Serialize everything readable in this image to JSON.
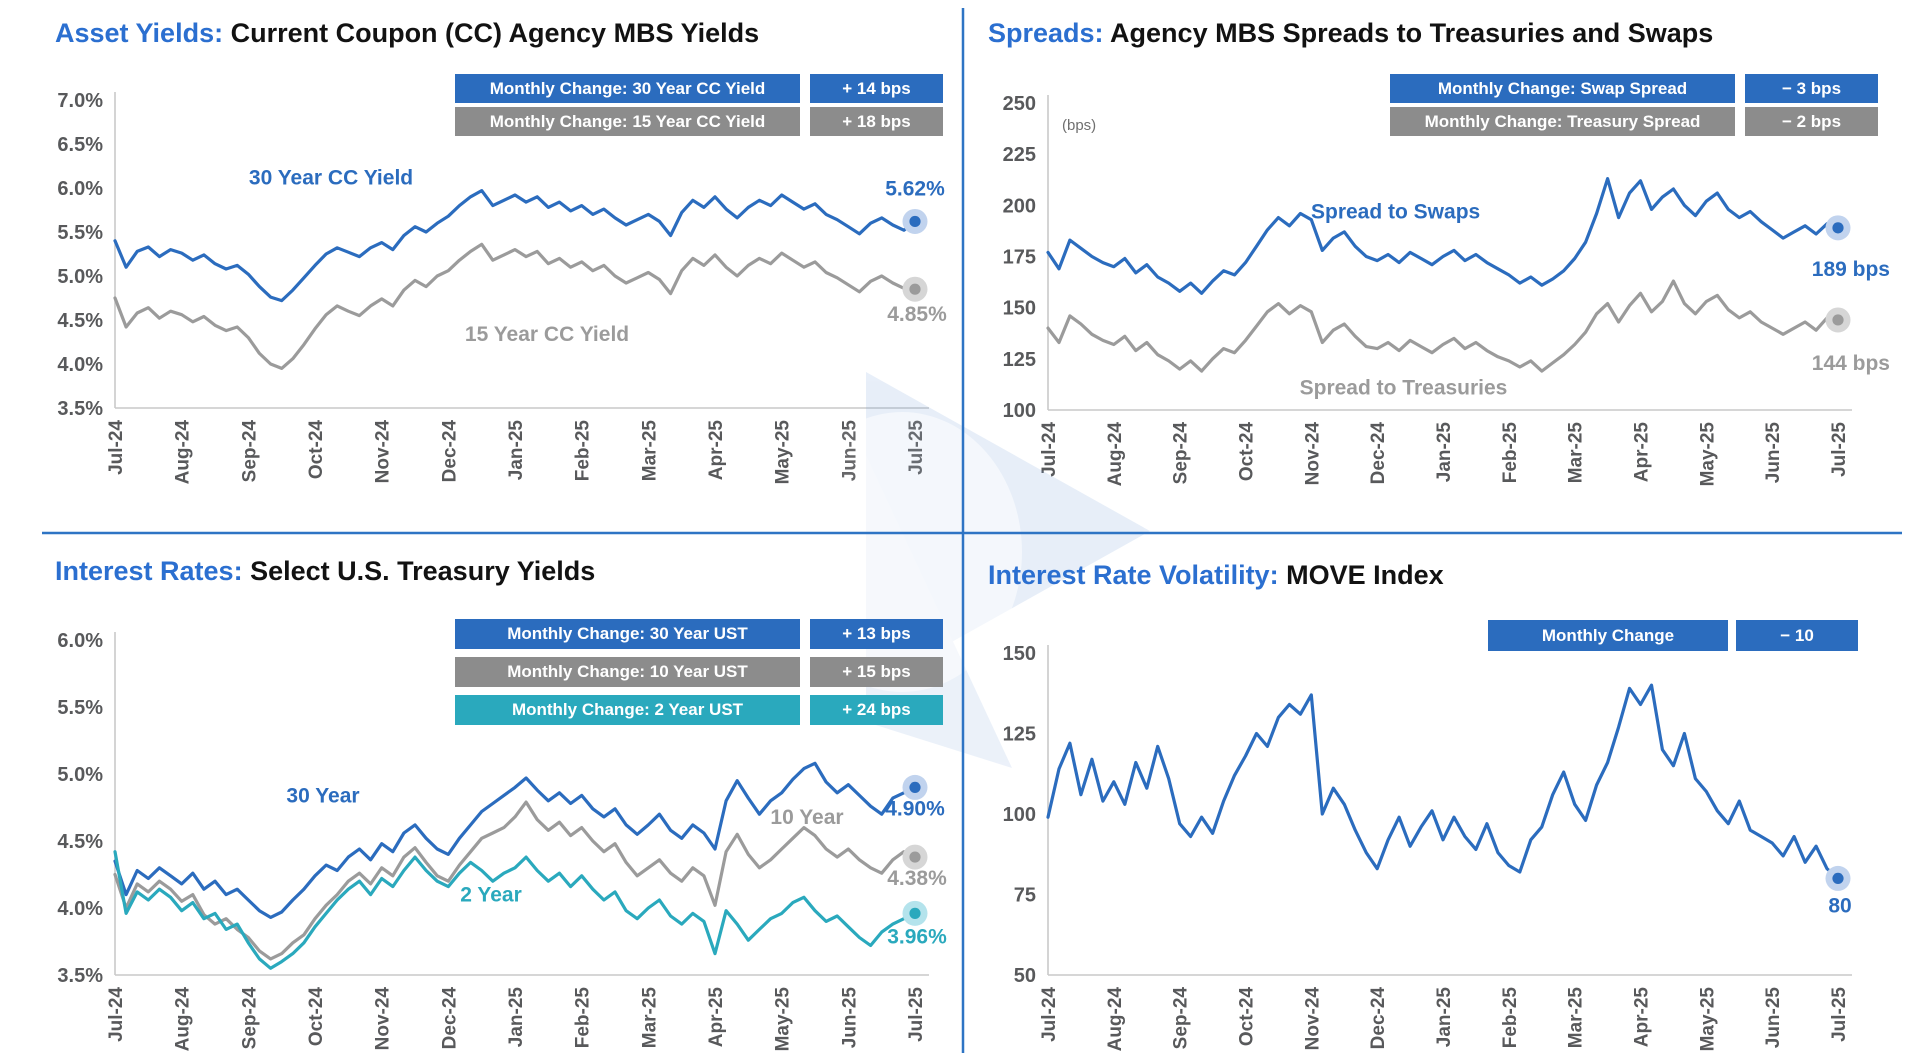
{
  "page": {
    "background": "#ffffff",
    "divider_color": "#2e74c4",
    "accent_blue": "#2b6cbe",
    "accent_gray": "#8c8c8c",
    "accent_teal": "#2aa9bd",
    "axis_color": "#c9c9c9",
    "tick_label_color": "#58595b"
  },
  "panels": [
    {
      "id": "cc_yields",
      "title_prefix": "Asset Yields:",
      "title_rest": " Current Coupon (CC) Agency MBS Yields",
      "legend": [
        {
          "label": "Monthly Change: 30 Year CC Yield",
          "value": "+ 14 bps",
          "color": "#2b6cbe"
        },
        {
          "label": "Monthly Change: 15 Year CC Yield",
          "value": "+ 18 bps",
          "color": "#8c8c8c"
        }
      ]
    },
    {
      "id": "spreads",
      "title_prefix": "Spreads:",
      "title_rest": " Agency MBS Spreads to Treasuries and Swaps",
      "legend": [
        {
          "label": "Monthly Change: Swap Spread",
          "value": "− 3 bps",
          "color": "#2b6cbe"
        },
        {
          "label": "Monthly Change: Treasury Spread",
          "value": "− 2 bps",
          "color": "#8c8c8c"
        }
      ]
    },
    {
      "id": "ust_yields",
      "title_prefix": "Interest Rates:",
      "title_rest": " Select U.S. Treasury Yields",
      "legend": [
        {
          "label": "Monthly Change: 30 Year UST",
          "value": "+ 13 bps",
          "color": "#2b6cbe"
        },
        {
          "label": "Monthly Change: 10 Year UST",
          "value": "+ 15 bps",
          "color": "#8c8c8c"
        },
        {
          "label": "Monthly Change: 2 Year UST",
          "value": "+ 24 bps",
          "color": "#2aa9bd"
        }
      ]
    },
    {
      "id": "move",
      "title_prefix": "Interest Rate Volatility:",
      "title_rest": " MOVE Index",
      "legend": [
        {
          "label": "Monthly Change",
          "value": "− 10",
          "color": "#2b6cbe"
        }
      ]
    }
  ],
  "chart_data": [
    {
      "id": "cc_yields",
      "type": "line",
      "title": "Asset Yields: Current Coupon (CC) Agency MBS Yields",
      "x_labels": [
        "Jul-24",
        "Aug-24",
        "Sep-24",
        "Oct-24",
        "Nov-24",
        "Dec-24",
        "Jan-25",
        "Feb-25",
        "Mar-25",
        "Apr-25",
        "May-25",
        "Jun-25",
        "Jul-25"
      ],
      "ylim": [
        3.5,
        7.0
      ],
      "grid": false,
      "yticks": [
        {
          "v": 7.0,
          "label": "7.0%"
        },
        {
          "v": 6.5,
          "label": "6.5%"
        },
        {
          "v": 6.0,
          "label": "6.0%"
        },
        {
          "v": 5.5,
          "label": "5.5%"
        },
        {
          "v": 5.0,
          "label": "5.0%"
        },
        {
          "v": 4.5,
          "label": "4.5%"
        },
        {
          "v": 4.0,
          "label": "4.0%"
        },
        {
          "v": 3.5,
          "label": "3.5%"
        }
      ],
      "series": [
        {
          "name": "30 Year CC Yield",
          "color": "#2b6cbe",
          "halo": "#c1d3ee",
          "inline_label": {
            "text": "30 Year CC Yield",
            "x_frac": 0.27,
            "value": 6.12
          },
          "end_label": {
            "text": "5.62%",
            "dx": 0,
            "dy": -26,
            "anchor": "middle"
          },
          "values": [
            5.4,
            5.1,
            5.28,
            5.33,
            5.22,
            5.3,
            5.26,
            5.18,
            5.24,
            5.14,
            5.08,
            5.12,
            5.02,
            4.88,
            4.76,
            4.72,
            4.84,
            4.98,
            5.12,
            5.25,
            5.32,
            5.27,
            5.22,
            5.32,
            5.38,
            5.3,
            5.46,
            5.56,
            5.5,
            5.6,
            5.68,
            5.8,
            5.9,
            5.97,
            5.8,
            5.86,
            5.92,
            5.84,
            5.9,
            5.78,
            5.84,
            5.74,
            5.8,
            5.7,
            5.76,
            5.66,
            5.58,
            5.64,
            5.7,
            5.62,
            5.46,
            5.72,
            5.86,
            5.78,
            5.9,
            5.76,
            5.66,
            5.78,
            5.86,
            5.8,
            5.92,
            5.84,
            5.76,
            5.82,
            5.7,
            5.64,
            5.56,
            5.48,
            5.6,
            5.66,
            5.58,
            5.52,
            5.62
          ]
        },
        {
          "name": "15 Year CC Yield",
          "color": "#9b9b9b",
          "halo": "#d6d6d6",
          "inline_label": {
            "text": "15 Year CC Yield",
            "x_frac": 0.54,
            "value": 4.34
          },
          "end_label": {
            "text": "4.85%",
            "dx": 2,
            "dy": 32,
            "anchor": "middle"
          },
          "values": [
            4.75,
            4.42,
            4.58,
            4.64,
            4.52,
            4.6,
            4.56,
            4.48,
            4.54,
            4.44,
            4.38,
            4.42,
            4.3,
            4.12,
            4.0,
            3.95,
            4.06,
            4.22,
            4.4,
            4.56,
            4.66,
            4.6,
            4.55,
            4.66,
            4.74,
            4.66,
            4.84,
            4.95,
            4.88,
            5.0,
            5.06,
            5.18,
            5.28,
            5.36,
            5.18,
            5.24,
            5.3,
            5.22,
            5.28,
            5.14,
            5.2,
            5.1,
            5.16,
            5.06,
            5.12,
            5.0,
            4.92,
            4.98,
            5.04,
            4.96,
            4.8,
            5.06,
            5.2,
            5.12,
            5.24,
            5.1,
            5.0,
            5.12,
            5.2,
            5.14,
            5.26,
            5.18,
            5.1,
            5.16,
            5.04,
            4.98,
            4.9,
            4.82,
            4.94,
            5.0,
            4.92,
            4.86,
            4.85
          ]
        }
      ]
    },
    {
      "id": "spreads",
      "type": "line",
      "title": "Spreads: Agency MBS Spreads to Treasuries and Swaps",
      "unit_note": "(bps)",
      "x_labels": [
        "Jul-24",
        "Aug-24",
        "Sep-24",
        "Oct-24",
        "Nov-24",
        "Dec-24",
        "Jan-25",
        "Feb-25",
        "Mar-25",
        "Apr-25",
        "May-25",
        "Jun-25",
        "Jul-25"
      ],
      "ylim": [
        100,
        250
      ],
      "grid": false,
      "yticks": [
        {
          "v": 250,
          "label": "250"
        },
        {
          "v": 225,
          "label": "225"
        },
        {
          "v": 200,
          "label": "200"
        },
        {
          "v": 175,
          "label": "175"
        },
        {
          "v": 150,
          "label": "150"
        },
        {
          "v": 125,
          "label": "125"
        },
        {
          "v": 100,
          "label": "100"
        }
      ],
      "series": [
        {
          "name": "Spread to Swaps",
          "color": "#2b6cbe",
          "halo": "#c1d3ee",
          "inline_label": {
            "text": "Spread to Swaps",
            "x_frac": 0.44,
            "value": 197
          },
          "end_label": {
            "text": "189 bps",
            "dx": 52,
            "dy": 48,
            "anchor": "end"
          },
          "values": [
            177,
            169,
            183,
            179,
            175,
            172,
            170,
            174,
            167,
            171,
            165,
            162,
            158,
            162,
            157,
            163,
            168,
            166,
            172,
            180,
            188,
            194,
            190,
            196,
            193,
            178,
            184,
            187,
            180,
            175,
            173,
            176,
            172,
            177,
            174,
            171,
            175,
            178,
            173,
            176,
            172,
            169,
            166,
            162,
            165,
            161,
            164,
            168,
            174,
            182,
            196,
            213,
            194,
            206,
            212,
            198,
            204,
            208,
            200,
            195,
            202,
            206,
            198,
            194,
            197,
            192,
            188,
            184,
            187,
            190,
            186,
            191,
            189
          ]
        },
        {
          "name": "Spread to Treasuries",
          "color": "#9b9b9b",
          "halo": "#d6d6d6",
          "inline_label": {
            "text": "Spread to Treasuries",
            "x_frac": 0.45,
            "value": 111
          },
          "end_label": {
            "text": "144 bps",
            "dx": 52,
            "dy": 50,
            "anchor": "end"
          },
          "values": [
            140,
            133,
            146,
            142,
            137,
            134,
            132,
            136,
            129,
            133,
            127,
            124,
            120,
            124,
            119,
            125,
            130,
            128,
            134,
            141,
            148,
            152,
            147,
            151,
            148,
            133,
            139,
            142,
            136,
            131,
            130,
            133,
            129,
            134,
            131,
            128,
            132,
            135,
            130,
            133,
            129,
            126,
            124,
            121,
            124,
            119,
            123,
            127,
            132,
            138,
            147,
            152,
            143,
            151,
            157,
            148,
            153,
            163,
            152,
            147,
            153,
            156,
            149,
            145,
            148,
            143,
            140,
            137,
            140,
            143,
            139,
            145,
            144
          ]
        }
      ]
    },
    {
      "id": "ust_yields",
      "type": "line",
      "title": "Interest Rates: Select U.S. Treasury Yields",
      "x_labels": [
        "Jul-24",
        "Aug-24",
        "Sep-24",
        "Oct-24",
        "Nov-24",
        "Dec-24",
        "Jan-25",
        "Feb-25",
        "Mar-25",
        "Apr-25",
        "May-25",
        "Jun-25",
        "Jul-25"
      ],
      "ylim": [
        3.5,
        6.0
      ],
      "grid": false,
      "yticks": [
        {
          "v": 6.0,
          "label": "6.0%"
        },
        {
          "v": 5.5,
          "label": "5.5%"
        },
        {
          "v": 5.0,
          "label": "5.0%"
        },
        {
          "v": 4.5,
          "label": "4.5%"
        },
        {
          "v": 4.0,
          "label": "4.0%"
        },
        {
          "v": 3.5,
          "label": "3.5%"
        }
      ],
      "series": [
        {
          "name": "30 Year",
          "color": "#2b6cbe",
          "halo": "#c1d3ee",
          "inline_label": {
            "text": "30 Year",
            "x_frac": 0.26,
            "value": 4.84
          },
          "end_label": {
            "text": "4.90%",
            "dx": 0,
            "dy": 28,
            "anchor": "middle"
          },
          "values": [
            4.35,
            4.1,
            4.28,
            4.22,
            4.3,
            4.24,
            4.18,
            4.26,
            4.14,
            4.2,
            4.1,
            4.14,
            4.06,
            3.98,
            3.93,
            3.97,
            4.06,
            4.14,
            4.24,
            4.32,
            4.28,
            4.38,
            4.44,
            4.36,
            4.48,
            4.42,
            4.56,
            4.62,
            4.52,
            4.44,
            4.4,
            4.52,
            4.62,
            4.72,
            4.78,
            4.84,
            4.9,
            4.97,
            4.88,
            4.8,
            4.86,
            4.78,
            4.84,
            4.74,
            4.68,
            4.74,
            4.62,
            4.55,
            4.62,
            4.7,
            4.58,
            4.52,
            4.62,
            4.56,
            4.44,
            4.8,
            4.95,
            4.82,
            4.7,
            4.8,
            4.86,
            4.96,
            5.04,
            5.08,
            4.94,
            4.86,
            4.92,
            4.84,
            4.76,
            4.7,
            4.82,
            4.86,
            4.9
          ]
        },
        {
          "name": "10 Year",
          "color": "#9b9b9b",
          "halo": "#d6d6d6",
          "inline_label": {
            "text": "10 Year",
            "x_frac": 0.865,
            "value": 4.68
          },
          "end_label": {
            "text": "4.38%",
            "dx": 2,
            "dy": 28,
            "anchor": "middle"
          },
          "values": [
            4.25,
            4.0,
            4.18,
            4.12,
            4.2,
            4.14,
            4.05,
            4.1,
            3.95,
            3.88,
            3.92,
            3.84,
            3.78,
            3.68,
            3.62,
            3.66,
            3.74,
            3.8,
            3.92,
            4.02,
            4.1,
            4.2,
            4.26,
            4.18,
            4.3,
            4.24,
            4.38,
            4.45,
            4.34,
            4.24,
            4.2,
            4.32,
            4.42,
            4.52,
            4.56,
            4.6,
            4.68,
            4.79,
            4.66,
            4.58,
            4.64,
            4.54,
            4.6,
            4.5,
            4.42,
            4.48,
            4.34,
            4.24,
            4.3,
            4.36,
            4.26,
            4.2,
            4.3,
            4.24,
            4.02,
            4.42,
            4.55,
            4.4,
            4.3,
            4.36,
            4.44,
            4.52,
            4.6,
            4.54,
            4.44,
            4.38,
            4.44,
            4.36,
            4.3,
            4.26,
            4.36,
            4.42,
            4.38
          ]
        },
        {
          "name": "2 Year",
          "color": "#2aa9bd",
          "halo": "#b4e3ec",
          "inline_label": {
            "text": "2 Year",
            "x_frac": 0.47,
            "value": 4.1
          },
          "end_label": {
            "text": "3.96%",
            "dx": 2,
            "dy": 30,
            "anchor": "middle"
          },
          "values": [
            4.42,
            3.96,
            4.12,
            4.06,
            4.14,
            4.08,
            3.98,
            4.04,
            3.92,
            3.96,
            3.84,
            3.88,
            3.74,
            3.62,
            3.55,
            3.6,
            3.66,
            3.74,
            3.86,
            3.96,
            4.06,
            4.14,
            4.2,
            4.1,
            4.22,
            4.16,
            4.28,
            4.38,
            4.28,
            4.2,
            4.16,
            4.26,
            4.34,
            4.28,
            4.2,
            4.26,
            4.3,
            4.38,
            4.28,
            4.2,
            4.26,
            4.16,
            4.24,
            4.14,
            4.06,
            4.12,
            3.98,
            3.92,
            4.0,
            4.06,
            3.94,
            3.88,
            3.96,
            3.9,
            3.66,
            3.98,
            3.88,
            3.76,
            3.84,
            3.92,
            3.96,
            4.04,
            4.08,
            3.98,
            3.9,
            3.94,
            3.86,
            3.78,
            3.72,
            3.82,
            3.88,
            3.92,
            3.96
          ]
        }
      ]
    },
    {
      "id": "move",
      "type": "line",
      "title": "Interest Rate Volatility: MOVE Index",
      "x_labels": [
        "Jul-24",
        "Aug-24",
        "Sep-24",
        "Oct-24",
        "Nov-24",
        "Dec-24",
        "Jan-25",
        "Feb-25",
        "Mar-25",
        "Apr-25",
        "May-25",
        "Jun-25",
        "Jul-25"
      ],
      "ylim": [
        50,
        150
      ],
      "grid": false,
      "yticks": [
        {
          "v": 150,
          "label": "150"
        },
        {
          "v": 125,
          "label": "125"
        },
        {
          "v": 100,
          "label": "100"
        },
        {
          "v": 75,
          "label": "75"
        },
        {
          "v": 50,
          "label": "50"
        }
      ],
      "series": [
        {
          "name": "MOVE Index",
          "color": "#2b6cbe",
          "halo": "#c1d3ee",
          "end_label": {
            "text": "80",
            "dx": 2,
            "dy": 34,
            "anchor": "middle"
          },
          "values": [
            99,
            114,
            122,
            106,
            117,
            104,
            110,
            103,
            116,
            108,
            121,
            111,
            97,
            93,
            99,
            94,
            104,
            112,
            118,
            125,
            121,
            130,
            134,
            131,
            137,
            100,
            108,
            103,
            95,
            88,
            83,
            92,
            99,
            90,
            96,
            101,
            92,
            99,
            93,
            89,
            97,
            88,
            84,
            82,
            92,
            96,
            106,
            113,
            103,
            98,
            109,
            116,
            127,
            139,
            134,
            140,
            120,
            115,
            125,
            111,
            107,
            101,
            97,
            104,
            95,
            93,
            91,
            87,
            93,
            85,
            90,
            83,
            80
          ]
        }
      ]
    }
  ]
}
